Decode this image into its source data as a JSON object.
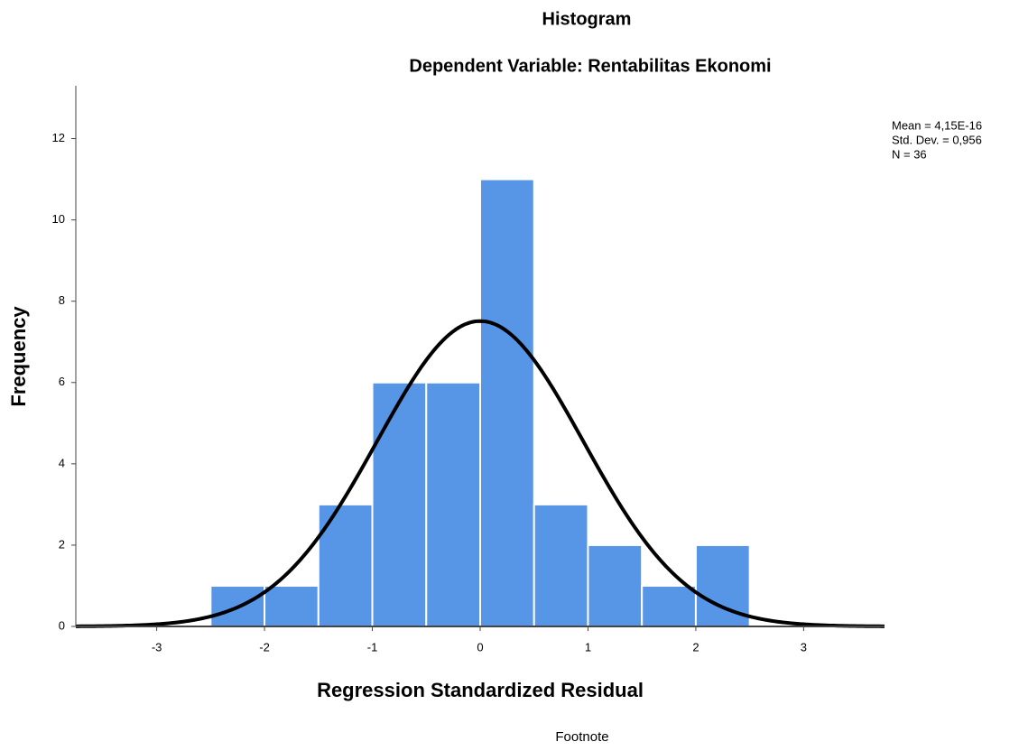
{
  "chart_data": {
    "type": "histogram",
    "title": "Histogram",
    "subtitle": "Dependent Variable: Rentabilitas Ekonomi",
    "x_label": "Regression Standardized Residual",
    "y_label": "Frequency",
    "footnote": "Footnote",
    "bins": [
      -2.5,
      -2,
      -1.5,
      -1,
      -0.5,
      0,
      0.5,
      1,
      1.5,
      2,
      2.5
    ],
    "values": [
      1,
      1,
      3,
      6,
      6,
      11,
      3,
      2,
      1,
      2
    ],
    "color": "#5795e6",
    "stats": [
      {
        "value": 4.15e-16,
        "label": "Mean = 4,15E-16"
      },
      {
        "value": 0.956,
        "label": "Std. Dev. = 0,956"
      },
      {
        "value": 36,
        "label": "N = 36"
      }
    ],
    "xlim": [
      -3.75,
      3.75
    ],
    "ylim": [
      0,
      13.3
    ],
    "xticks": [
      -3,
      -2,
      -1,
      0,
      1,
      2,
      3
    ],
    "yticks": [
      0,
      2,
      4,
      6,
      8,
      10,
      12
    ]
  }
}
